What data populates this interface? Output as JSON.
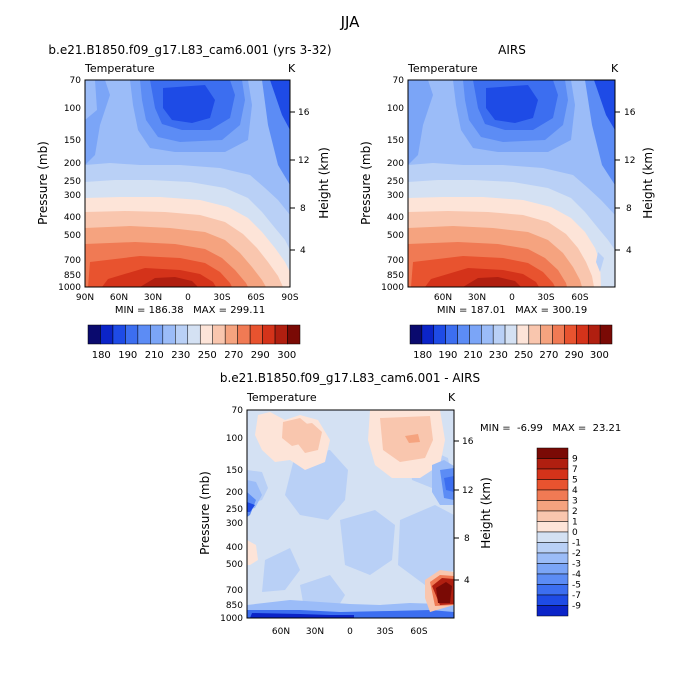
{
  "figure": {
    "title": "JJA"
  },
  "chart_data": [
    {
      "type": "heatmap",
      "title": "b.e21.B1850.f09_g17.L83_cam6.001 (yrs 3-32)",
      "subtitle": "Temperature",
      "units": "K",
      "ylabel": "Pressure (mb)",
      "ylabel_right": "Height (km)",
      "x_ticks": [
        "90N",
        "60N",
        "30N",
        "0",
        "30S",
        "60S",
        "90S"
      ],
      "y_ticks": [
        "70",
        "100",
        "150",
        "200",
        "250",
        "300",
        "400",
        "500",
        "700",
        "850",
        "1000"
      ],
      "height_ticks": [
        "16",
        "12",
        "8",
        "4"
      ],
      "stats": "MIN = 186.38   MAX = 299.11",
      "colorbar": {
        "orientation": "horizontal",
        "labels": [
          "180",
          "190",
          "210",
          "230",
          "250",
          "270",
          "290",
          "300"
        ],
        "colors": [
          "#0a0a6e",
          "#0b24c8",
          "#1e4be6",
          "#3c6ef0",
          "#5c8cf5",
          "#7ba5f7",
          "#9bbcf8",
          "#b9d0f6",
          "#d4e1f3",
          "#fde4d8",
          "#f9c6ae",
          "#f5a37f",
          "#f07a54",
          "#e8532f",
          "#d4331a",
          "#b01f10",
          "#7a0a05"
        ]
      }
    },
    {
      "type": "heatmap",
      "title": "AIRS",
      "subtitle": "Temperature",
      "units": "K",
      "ylabel": "Pressure (mb)",
      "ylabel_right": "Height (km)",
      "x_ticks": [
        "60N",
        "30N",
        "0",
        "30S",
        "60S"
      ],
      "y_ticks": [
        "70",
        "100",
        "150",
        "200",
        "250",
        "300",
        "400",
        "500",
        "700",
        "850",
        "1000"
      ],
      "height_ticks": [
        "16",
        "12",
        "8",
        "4"
      ],
      "stats": "MIN = 187.01   MAX = 300.19",
      "colorbar": {
        "orientation": "horizontal",
        "labels": [
          "180",
          "190",
          "210",
          "230",
          "250",
          "270",
          "290",
          "300"
        ],
        "colors": [
          "#0a0a6e",
          "#0b24c8",
          "#1e4be6",
          "#3c6ef0",
          "#5c8cf5",
          "#7ba5f7",
          "#9bbcf8",
          "#b9d0f6",
          "#d4e1f3",
          "#fde4d8",
          "#f9c6ae",
          "#f5a37f",
          "#f07a54",
          "#e8532f",
          "#d4331a",
          "#b01f10",
          "#7a0a05"
        ]
      }
    },
    {
      "type": "heatmap",
      "title": "b.e21.B1850.f09_g17.L83_cam6.001 - AIRS",
      "subtitle": "Temperature",
      "units": "K",
      "ylabel": "Pressure (mb)",
      "ylabel_right": "Height (km)",
      "x_ticks": [
        "60N",
        "30N",
        "0",
        "30S",
        "60S"
      ],
      "y_ticks": [
        "70",
        "100",
        "150",
        "200",
        "250",
        "300",
        "400",
        "500",
        "700",
        "850",
        "1000"
      ],
      "height_ticks": [
        "16",
        "12",
        "8",
        "4"
      ],
      "stats": "MIN =  -6.99   MAX =  23.21",
      "colorbar": {
        "orientation": "vertical",
        "labels": [
          "9",
          "7",
          "5",
          "4",
          "3",
          "2",
          "1",
          "0",
          "-1",
          "-2",
          "-3",
          "-4",
          "-5",
          "-7",
          "-9"
        ],
        "colors": [
          "#7a0a05",
          "#b01f10",
          "#d4331a",
          "#e8532f",
          "#f07a54",
          "#f5a37f",
          "#f9c6ae",
          "#fde4d8",
          "#d4e1f3",
          "#b9d0f6",
          "#9bbcf8",
          "#7ba5f7",
          "#5c8cf5",
          "#3c6ef0",
          "#1e4be6",
          "#0b24c8"
        ]
      }
    }
  ]
}
